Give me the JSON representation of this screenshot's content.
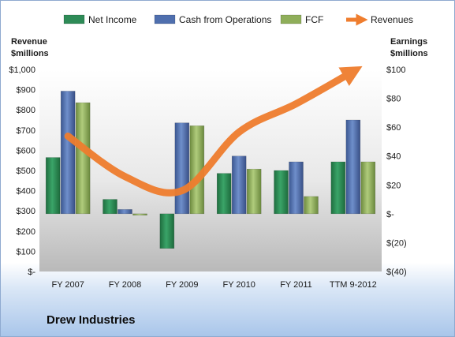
{
  "company": "Drew Industries",
  "chart_data": {
    "type": "bar",
    "categories": [
      "FY 2007",
      "FY 2008",
      "FY 2009",
      "FY 2010",
      "FY 2011",
      "TTM 9-2012"
    ],
    "series": [
      {
        "name": "Net Income",
        "axis": "right",
        "color": "#2e8b57",
        "values": [
          39,
          10,
          -24,
          28,
          30,
          36
        ]
      },
      {
        "name": "Cash from Operations",
        "axis": "right",
        "color": "#4f6fae",
        "values": [
          85,
          3,
          63,
          40,
          36,
          65
        ]
      },
      {
        "name": "FCF",
        "axis": "right",
        "color": "#8fae5a",
        "values": [
          77,
          -1,
          61,
          31,
          12,
          36
        ]
      }
    ],
    "line_series": {
      "name": "Revenues",
      "axis": "left",
      "color": "#ef7d2e",
      "values": [
        670,
        470,
        400,
        690,
        830,
        990
      ]
    },
    "left_axis": {
      "title_line1": "Revenue",
      "title_line2": "$millions",
      "min": 0,
      "max": 1000,
      "step": 100,
      "ticks": [
        "$-",
        "$100",
        "$200",
        "$300",
        "$400",
        "$500",
        "$600",
        "$700",
        "$800",
        "$900",
        "$1,000"
      ]
    },
    "right_axis": {
      "title_line1": "Earnings",
      "title_line2": "$millions",
      "min": -40,
      "max": 100,
      "step": 20,
      "ticks": [
        "$(40)",
        "$(20)",
        "$-",
        "$20",
        "$40",
        "$60",
        "$80",
        "$100"
      ]
    },
    "legend": [
      {
        "name": "Net Income",
        "color": "#2e8b57",
        "kind": "box"
      },
      {
        "name": "Cash from Operations",
        "color": "#4f6fae",
        "kind": "box"
      },
      {
        "name": "FCF",
        "color": "#8fae5a",
        "kind": "box"
      },
      {
        "name": "Revenues",
        "color": "#ef7d2e",
        "kind": "arrow"
      }
    ],
    "legend_position": "top",
    "grid": false
  }
}
